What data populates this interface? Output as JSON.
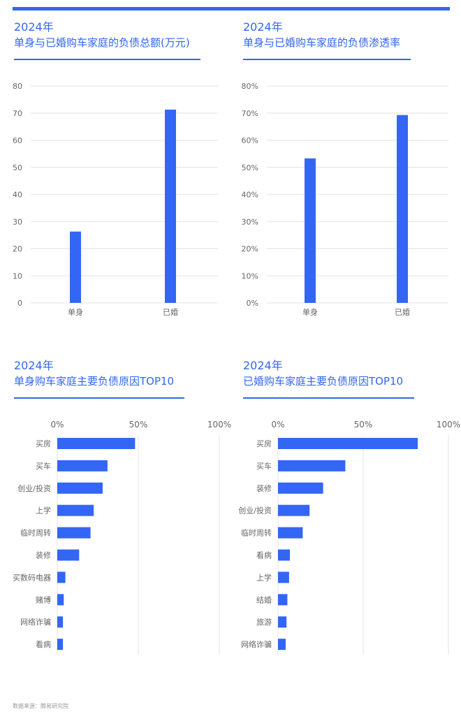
{
  "colors": {
    "accent": "#3366f0",
    "bar": "#3366f5",
    "grid": "#e3e3e3",
    "text": "#666666"
  },
  "source": "数据来源：腾易研究院",
  "chart_data": [
    {
      "type": "bar",
      "title": "2024年",
      "subtitle": "单身与已婚购车家庭的负债总额(万元)",
      "categories": [
        "单身",
        "已婚"
      ],
      "values": [
        26.3,
        71.3
      ],
      "ylim": [
        0,
        80
      ],
      "yticks": [
        "0",
        "10",
        "20",
        "30",
        "40",
        "50",
        "60",
        "70",
        "80"
      ],
      "grid": true
    },
    {
      "type": "bar",
      "title": "2024年",
      "subtitle": "单身与已婚购车家庭的负债渗透率",
      "categories": [
        "单身",
        "已婚"
      ],
      "values": [
        53.3,
        69.3
      ],
      "ylim": [
        0,
        80
      ],
      "yticks": [
        "0%",
        "10%",
        "20%",
        "30%",
        "40%",
        "50%",
        "60%",
        "70%",
        "80%"
      ],
      "grid": true
    },
    {
      "type": "bar",
      "orientation": "horizontal",
      "title": "2024年",
      "subtitle": "单身购车家庭主要负债原因TOP10",
      "categories": [
        "买房",
        "买车",
        "创业/投资",
        "上学",
        "临时周转",
        "装修",
        "买数码电器",
        "赌博",
        "网络诈骗",
        "看病"
      ],
      "values": [
        48,
        31,
        28,
        22.5,
        20.5,
        13.5,
        5,
        4,
        3.5,
        3.5
      ],
      "xlim": [
        0,
        100
      ],
      "xticks": [
        "0%",
        "50%",
        "100%"
      ],
      "grid": true
    },
    {
      "type": "bar",
      "orientation": "horizontal",
      "title": "2024年",
      "subtitle": "已婚购车家庭主要负债原因TOP10",
      "categories": [
        "买房",
        "买车",
        "装修",
        "创业/投资",
        "临时周转",
        "看病",
        "上学",
        "结婚",
        "旅游",
        "网络诈骗"
      ],
      "values": [
        82,
        39.5,
        26.5,
        18.5,
        14.5,
        7,
        6.5,
        5.5,
        5,
        4.5
      ],
      "xlim": [
        0,
        100
      ],
      "xticks": [
        "0%",
        "50%",
        "100%"
      ],
      "grid": true
    }
  ]
}
